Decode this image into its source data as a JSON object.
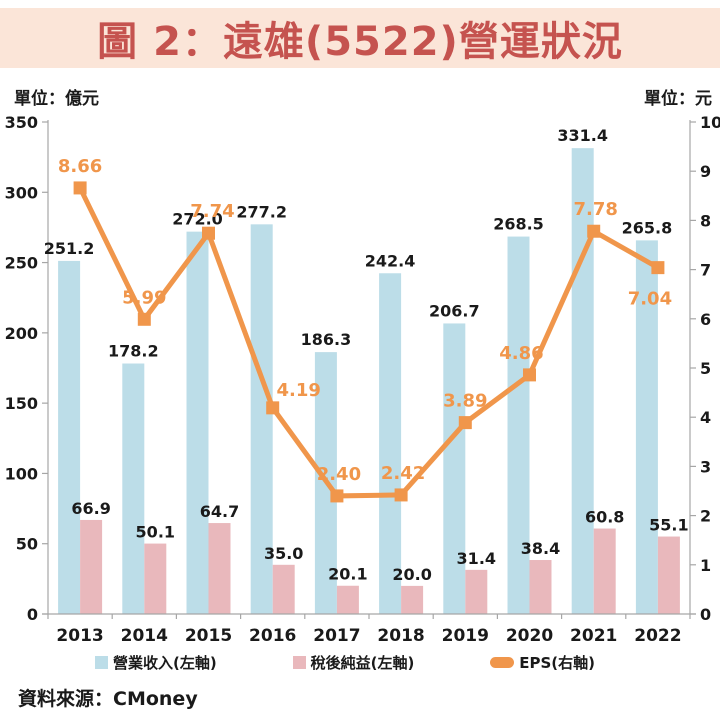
{
  "title": "圖 2：遠雄(5522)營運狀況",
  "left_axis_unit": "單位：億元",
  "right_axis_unit": "單位：元",
  "source": "資料來源：CMoney",
  "colors": {
    "banner_bg": "#FBE5D8",
    "title_text": "#C5534F",
    "revenue_bar": "#BCDDE8",
    "profit_bar": "#E9B8BC",
    "eps_line": "#F0964B",
    "axis_line": "#A6A6A6",
    "text": "#1A1A1A"
  },
  "legend": [
    {
      "key": "revenue",
      "label": "營業收入(左軸)",
      "color": "#BCDDE8",
      "swatch": "square"
    },
    {
      "key": "profit",
      "label": "稅後純益(左軸)",
      "color": "#E9B8BC",
      "swatch": "square"
    },
    {
      "key": "eps",
      "label": "EPS(右軸)",
      "color": "#F0964B",
      "swatch": "line-marker"
    }
  ],
  "chart_data": {
    "type": "bar",
    "subtype": "combo-bar-line-dual-axis",
    "categories": [
      "2013",
      "2014",
      "2015",
      "2016",
      "2017",
      "2018",
      "2019",
      "2020",
      "2021",
      "2022"
    ],
    "series": [
      {
        "key": "revenue",
        "name": "營業收入(左軸)",
        "type": "bar",
        "axis": "left",
        "color": "#BCDDE8",
        "values": [
          251.2,
          178.2,
          272.0,
          277.2,
          186.3,
          242.4,
          206.7,
          268.5,
          331.4,
          265.8
        ],
        "labels": [
          "251.2",
          "178.2",
          "272.0",
          "277.2",
          "186.3",
          "242.4",
          "206.7",
          "268.5",
          "331.4",
          "265.8"
        ]
      },
      {
        "key": "profit",
        "name": "稅後純益(左軸)",
        "type": "bar",
        "axis": "left",
        "color": "#E9B8BC",
        "values": [
          66.9,
          50.1,
          64.7,
          35.0,
          20.1,
          20.0,
          31.4,
          38.4,
          60.8,
          55.1
        ],
        "labels": [
          "66.9",
          "50.1",
          "64.7",
          "35.0",
          "20.1",
          "20.0",
          "31.4",
          "38.4",
          "60.8",
          "55.1"
        ]
      },
      {
        "key": "eps",
        "name": "EPS(右軸)",
        "type": "line",
        "axis": "right",
        "color": "#F0964B",
        "values": [
          8.66,
          5.99,
          7.74,
          4.19,
          2.4,
          2.42,
          3.89,
          4.86,
          7.78,
          7.04
        ],
        "labels": [
          "8.66",
          "5.99",
          "7.74",
          "4.19",
          "2.40",
          "2.42",
          "3.89",
          "4.86",
          "7.78",
          "7.04"
        ],
        "label_offsets": [
          [
            0,
            -16
          ],
          [
            0,
            -16
          ],
          [
            4,
            -16
          ],
          [
            26,
            -12
          ],
          [
            2,
            -16
          ],
          [
            2,
            -16
          ],
          [
            0,
            -16
          ],
          [
            -8,
            -16
          ],
          [
            2,
            -16
          ],
          [
            -8,
            37
          ]
        ]
      }
    ],
    "left_axis": {
      "min": 0,
      "max": 350,
      "step": 50,
      "tick_labels": [
        "0",
        "50",
        "100",
        "150",
        "200",
        "250",
        "300",
        "350"
      ]
    },
    "right_axis": {
      "min": 0,
      "max": 10,
      "step": 1,
      "tick_labels": [
        "0",
        "1",
        "2",
        "3",
        "4",
        "5",
        "6",
        "7",
        "8",
        "9",
        "10"
      ]
    },
    "grid": false,
    "legend_position": "bottom",
    "xlabel": "",
    "ylabel_left": "億元",
    "ylabel_right": "元"
  }
}
